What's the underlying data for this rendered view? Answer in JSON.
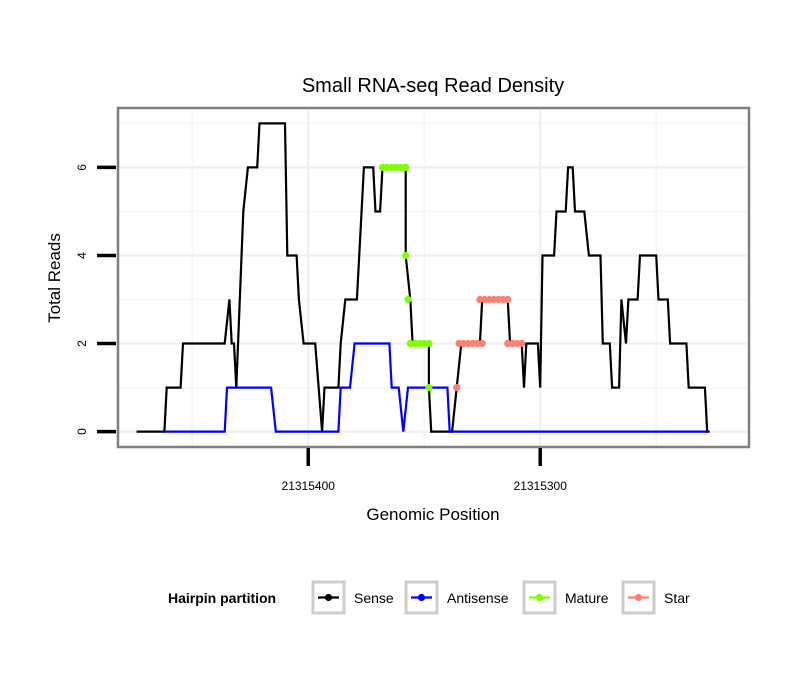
{
  "chart_data": {
    "type": "line",
    "title": "Small RNA-seq Read Density",
    "xlabel": "Genomic Position",
    "ylabel": "Total Reads",
    "x_reversed": true,
    "xlim": [
      21315482,
      21315210
    ],
    "ylim": [
      -0.35,
      7.35
    ],
    "x_ticks": [
      21315400,
      21315300
    ],
    "x_tick_labels": [
      "21315400",
      "21315300"
    ],
    "x_minor_grid": [
      21315450,
      21315350,
      21315250
    ],
    "y_ticks": [
      0,
      2,
      4,
      6
    ],
    "y_tick_labels": [
      "0",
      "2",
      "4",
      "6"
    ],
    "y_minor_grid": [
      1,
      3,
      5,
      7
    ],
    "grid": true,
    "legend": {
      "title": "Hairpin partition",
      "placement": "bottom",
      "entries": [
        {
          "name": "Sense",
          "color": "#000000"
        },
        {
          "name": "Antisense",
          "color": "#0000ff"
        },
        {
          "name": "Mature",
          "color": "#7fff00"
        },
        {
          "name": "Star",
          "color": "#fa8072"
        }
      ]
    },
    "series": [
      {
        "name": "Sense",
        "color": "#000000",
        "kind": "line",
        "points": [
          [
            21315474,
            0
          ],
          [
            21315462,
            0
          ],
          [
            21315461,
            1
          ],
          [
            21315455,
            1
          ],
          [
            21315454,
            2
          ],
          [
            21315436,
            2
          ],
          [
            21315434,
            3
          ],
          [
            21315433,
            2
          ],
          [
            21315432,
            2
          ],
          [
            21315431,
            1
          ],
          [
            21315428,
            5
          ],
          [
            21315426,
            6
          ],
          [
            21315422,
            6
          ],
          [
            21315421,
            7
          ],
          [
            21315410,
            7
          ],
          [
            21315409,
            4
          ],
          [
            21315405,
            4
          ],
          [
            21315404,
            3
          ],
          [
            21315402,
            2
          ],
          [
            21315397,
            2
          ],
          [
            21315394,
            0
          ],
          [
            21315393,
            1
          ],
          [
            21315387,
            1
          ],
          [
            21315386,
            2
          ],
          [
            21315384,
            3
          ],
          [
            21315379,
            3
          ],
          [
            21315376,
            6
          ],
          [
            21315372,
            6
          ],
          [
            21315371,
            5
          ],
          [
            21315369,
            5
          ],
          [
            21315368,
            6
          ],
          [
            21315358,
            6
          ],
          [
            21315358,
            4
          ],
          [
            21315356,
            3
          ],
          [
            21315355,
            2
          ],
          [
            21315348,
            2
          ],
          [
            21315348,
            1
          ],
          [
            21315347,
            0
          ],
          [
            21315338,
            0
          ],
          [
            21315336,
            1
          ],
          [
            21315334,
            2
          ],
          [
            21315326,
            2
          ],
          [
            21315325,
            3
          ],
          [
            21315314,
            3
          ],
          [
            21315313,
            2
          ],
          [
            21315308,
            2
          ],
          [
            21315307,
            1
          ],
          [
            21315306,
            2
          ],
          [
            21315301,
            2
          ],
          [
            21315300,
            1
          ],
          [
            21315299,
            4
          ],
          [
            21315294,
            4
          ],
          [
            21315293,
            5
          ],
          [
            21315289,
            5
          ],
          [
            21315288,
            6
          ],
          [
            21315286,
            6
          ],
          [
            21315285,
            5
          ],
          [
            21315281,
            5
          ],
          [
            21315279,
            4
          ],
          [
            21315274,
            4
          ],
          [
            21315273,
            2
          ],
          [
            21315270,
            2
          ],
          [
            21315269,
            1
          ],
          [
            21315266,
            1
          ],
          [
            21315265,
            3
          ],
          [
            21315263,
            2
          ],
          [
            21315262,
            3
          ],
          [
            21315258,
            3
          ],
          [
            21315257,
            4
          ],
          [
            21315250,
            4
          ],
          [
            21315249,
            3
          ],
          [
            21315245,
            3
          ],
          [
            21315244,
            2
          ],
          [
            21315237,
            2
          ],
          [
            21315236,
            1
          ],
          [
            21315229,
            1
          ],
          [
            21315228,
            0
          ],
          [
            21315227,
            0
          ]
        ]
      },
      {
        "name": "Antisense",
        "color": "#0000ff",
        "kind": "line",
        "points": [
          [
            21315462,
            0
          ],
          [
            21315436,
            0
          ],
          [
            21315435,
            1
          ],
          [
            21315416,
            1
          ],
          [
            21315414,
            0
          ],
          [
            21315387,
            0
          ],
          [
            21315386,
            1
          ],
          [
            21315382,
            1
          ],
          [
            21315380,
            2
          ],
          [
            21315365,
            2
          ],
          [
            21315364,
            1
          ],
          [
            21315361,
            1
          ],
          [
            21315359,
            0
          ],
          [
            21315357,
            1
          ],
          [
            21315340,
            1
          ],
          [
            21315339,
            0
          ],
          [
            21315228,
            0
          ]
        ]
      },
      {
        "name": "Mature",
        "color": "#7fff00",
        "kind": "points",
        "points": [
          [
            21315368,
            6
          ],
          [
            21315366,
            6
          ],
          [
            21315364,
            6
          ],
          [
            21315362,
            6
          ],
          [
            21315360,
            6
          ],
          [
            21315358,
            6
          ],
          [
            21315358,
            4
          ],
          [
            21315357,
            3
          ],
          [
            21315356,
            2
          ],
          [
            21315354,
            2
          ],
          [
            21315352,
            2
          ],
          [
            21315350,
            2
          ],
          [
            21315348,
            2
          ],
          [
            21315348,
            1
          ]
        ]
      },
      {
        "name": "Star",
        "color": "#fa8072",
        "kind": "points",
        "points": [
          [
            21315336,
            1
          ],
          [
            21315335,
            2
          ],
          [
            21315333,
            2
          ],
          [
            21315331,
            2
          ],
          [
            21315329,
            2
          ],
          [
            21315327,
            2
          ],
          [
            21315325,
            2
          ],
          [
            21315326,
            3
          ],
          [
            21315324,
            3
          ],
          [
            21315322,
            3
          ],
          [
            21315320,
            3
          ],
          [
            21315318,
            3
          ],
          [
            21315316,
            3
          ],
          [
            21315314,
            3
          ],
          [
            21315314,
            2
          ],
          [
            21315312,
            2
          ],
          [
            21315310,
            2
          ],
          [
            21315308,
            2
          ]
        ]
      }
    ]
  }
}
